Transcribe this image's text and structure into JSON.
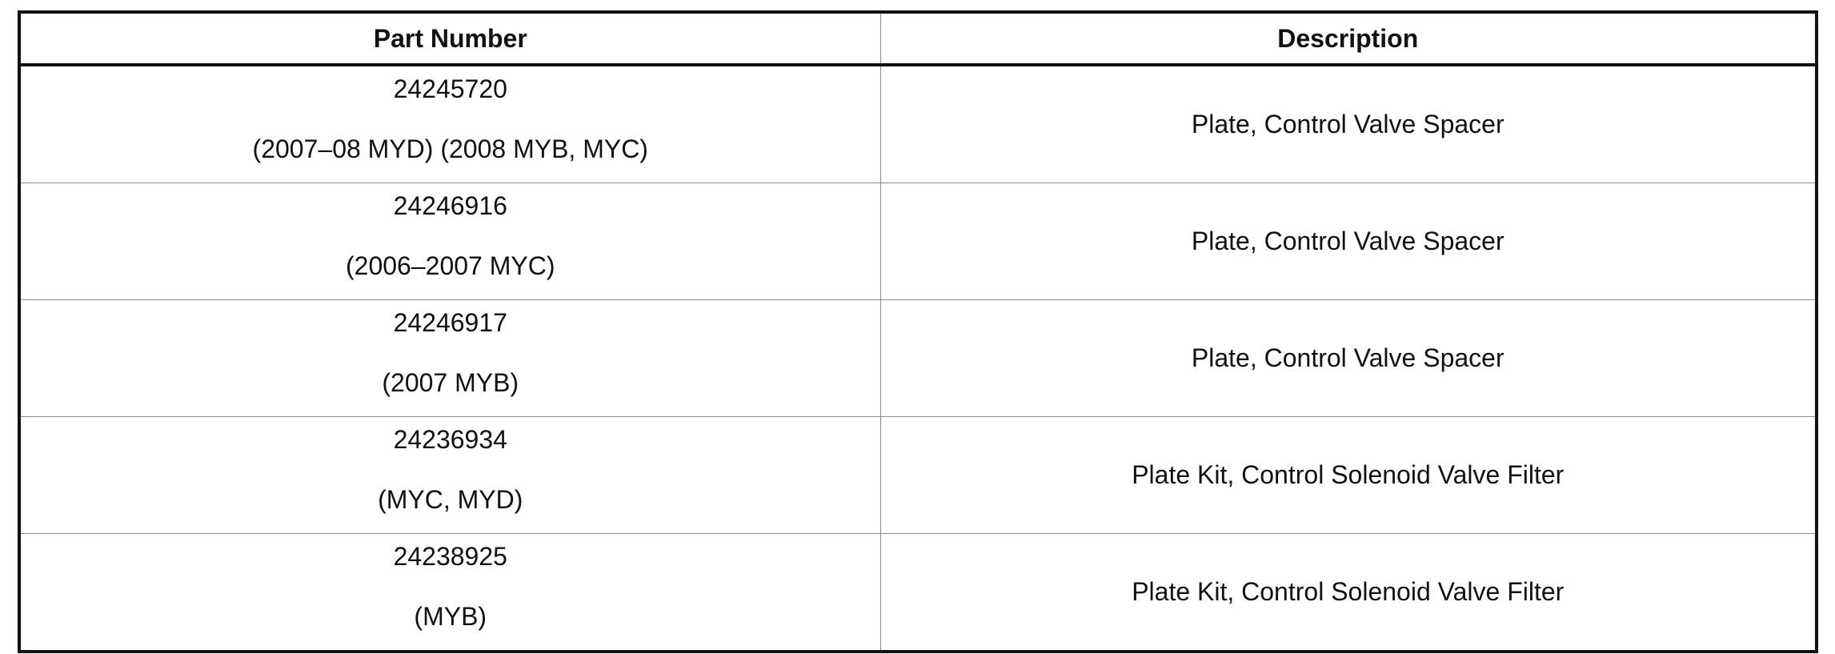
{
  "table": {
    "headers": [
      "Part Number",
      "Description"
    ],
    "rows": [
      {
        "part_number": "24245720",
        "applicability": "(2007–08 MYD) (2008 MYB, MYC)",
        "description": "Plate, Control Valve Spacer"
      },
      {
        "part_number": "24246916",
        "applicability": "(2006–2007 MYC)",
        "description": "Plate, Control Valve Spacer"
      },
      {
        "part_number": "24246917",
        "applicability": "(2007 MYB)",
        "description": "Plate, Control Valve Spacer"
      },
      {
        "part_number": "24236934",
        "applicability": "(MYC, MYD)",
        "description": "Plate Kit, Control Solenoid Valve Filter"
      },
      {
        "part_number": "24238925",
        "applicability": "(MYB)",
        "description": "Plate Kit, Control Solenoid Valve Filter"
      }
    ]
  }
}
